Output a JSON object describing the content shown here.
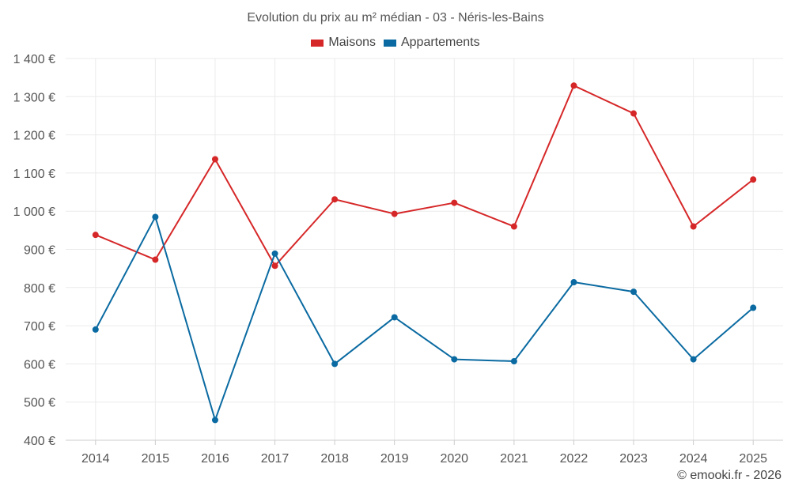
{
  "chart_data": {
    "type": "line",
    "title": "Evolution du prix au m² médian - 03 - Néris-les-Bains",
    "categories": [
      "2014",
      "2015",
      "2016",
      "2017",
      "2018",
      "2019",
      "2020",
      "2021",
      "2022",
      "2023",
      "2024",
      "2025"
    ],
    "series": [
      {
        "name": "Maisons",
        "color": "#d62728",
        "values": [
          938,
          873,
          1136,
          857,
          1031,
          993,
          1022,
          960,
          1329,
          1256,
          960,
          1083
        ]
      },
      {
        "name": "Appartements",
        "color": "#0a6aa1",
        "values": [
          690,
          985,
          453,
          889,
          600,
          722,
          612,
          607,
          814,
          789,
          612,
          747
        ]
      }
    ],
    "ylim": [
      400,
      1400
    ],
    "yticks": [
      400,
      500,
      600,
      700,
      800,
      900,
      1000,
      1100,
      1200,
      1300,
      1400
    ],
    "ytick_labels": [
      "400 €",
      "500 €",
      "600 €",
      "700 €",
      "800 €",
      "900 €",
      "1 000 €",
      "1 100 €",
      "1 200 €",
      "1 300 €",
      "1 400 €"
    ],
    "grid": true,
    "legend_position": "top-center"
  },
  "credit": "© emooki.fr - 2026"
}
